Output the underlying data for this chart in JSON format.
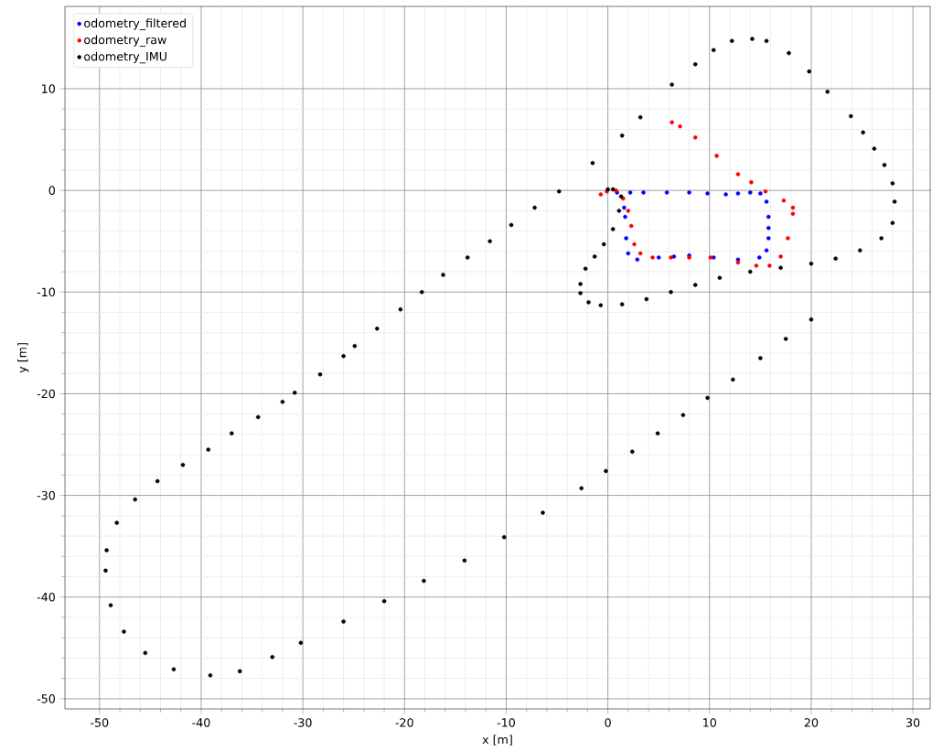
{
  "chart_data": {
    "type": "scatter",
    "xlabel": "x [m]",
    "ylabel": "y [m]",
    "xlim": [
      -53.4,
      31.7
    ],
    "ylim": [
      -51.0,
      18.1
    ],
    "xticks": [
      -50,
      -40,
      -30,
      -20,
      -10,
      0,
      10,
      20,
      30
    ],
    "yticks": [
      -50,
      -40,
      -30,
      -20,
      -10,
      0,
      10
    ],
    "grid": true,
    "legend": "top left",
    "series": [
      {
        "name": "odometry_filtered",
        "color": "#0000ff",
        "x": [
          2.2,
          3.5,
          5.8,
          8.0,
          9.8,
          11.6,
          12.8,
          14.0,
          15.0,
          15.6,
          15.8,
          15.8,
          15.8,
          15.6,
          14.9,
          12.8,
          10.4,
          8.0,
          6.5,
          5.0,
          2.9,
          2.0,
          1.8,
          1.7,
          1.6,
          0.9
        ],
        "values": [
          -0.2,
          -0.2,
          -0.2,
          -0.2,
          -0.3,
          -0.4,
          -0.3,
          -0.2,
          -0.3,
          -1.1,
          -2.6,
          -3.7,
          -4.7,
          -5.9,
          -6.6,
          -6.8,
          -6.6,
          -6.4,
          -6.5,
          -6.6,
          -6.8,
          -6.2,
          -4.7,
          -2.6,
          -1.7,
          -0.2
        ]
      },
      {
        "name": "odometry_raw",
        "color": "#ff0000",
        "x": [
          -0.7,
          -0.1,
          0.8,
          1.5,
          2.0,
          2.3,
          2.6,
          3.2,
          4.4,
          6.2,
          8.0,
          10.1,
          12.8,
          14.6,
          15.9,
          17.0,
          17.7,
          18.2,
          18.2,
          17.3,
          15.5,
          14.1,
          12.8,
          10.7,
          8.6,
          7.1,
          6.3
        ],
        "values": [
          -0.4,
          -0.1,
          0.0,
          -0.8,
          -2.0,
          -3.5,
          -5.3,
          -6.2,
          -6.6,
          -6.6,
          -6.6,
          -6.6,
          -7.1,
          -7.4,
          -7.4,
          -6.5,
          -4.7,
          -2.3,
          -1.7,
          -1.0,
          -0.1,
          0.8,
          1.6,
          3.4,
          5.2,
          6.3,
          6.7
        ]
      },
      {
        "name": "odometry_IMU",
        "color": "#000000",
        "x": [
          0.0,
          0.5,
          1.3,
          1.1,
          0.5,
          -0.4,
          -1.3,
          -2.2,
          -2.7,
          -2.7,
          -1.9,
          -0.7,
          1.4,
          3.8,
          6.2,
          8.6,
          11.0,
          14.0,
          17.0,
          20.0,
          22.4,
          24.8,
          26.9,
          28.0,
          28.2,
          28.0,
          27.2,
          26.2,
          25.1,
          23.9,
          21.6,
          19.8,
          17.8,
          15.6,
          14.2,
          12.2,
          10.4,
          8.6,
          6.3,
          3.2,
          1.4,
          -1.5,
          -4.8,
          -7.2,
          -9.5,
          -11.6,
          -13.8,
          -16.2,
          -18.3,
          -20.4,
          -22.7,
          -24.9,
          -26.0,
          -28.3,
          -30.8,
          -32.0,
          -34.4,
          -37.0,
          -39.3,
          -41.8,
          -44.3,
          -46.5,
          -48.3,
          -49.3,
          -49.4,
          -48.9,
          -47.6,
          -45.5,
          -42.7,
          -39.1,
          -36.2,
          -33.0,
          -30.2,
          -26.0,
          -22.0,
          -18.1,
          -14.1,
          -10.2,
          -6.4,
          -2.6,
          -0.2,
          2.4,
          4.9,
          7.4,
          9.8,
          12.3,
          15.0,
          17.5,
          20.0
        ],
        "values": [
          0.1,
          0.1,
          -0.6,
          -2.0,
          -3.8,
          -5.3,
          -6.5,
          -7.7,
          -9.2,
          -10.1,
          -11.0,
          -11.3,
          -11.2,
          -10.7,
          -10.0,
          -9.3,
          -8.6,
          -8.0,
          -7.6,
          -7.2,
          -6.7,
          -5.9,
          -4.7,
          -3.2,
          -1.1,
          0.7,
          2.5,
          4.1,
          5.7,
          7.3,
          9.7,
          11.7,
          13.5,
          14.7,
          14.9,
          14.7,
          13.8,
          12.4,
          10.4,
          7.2,
          5.4,
          2.7,
          -0.1,
          -1.7,
          -3.4,
          -5.0,
          -6.6,
          -8.3,
          -10.0,
          -11.7,
          -13.6,
          -15.3,
          -16.3,
          -18.1,
          -19.9,
          -20.8,
          -22.3,
          -23.9,
          -25.5,
          -27.0,
          -28.6,
          -30.4,
          -32.7,
          -35.4,
          -37.4,
          -40.8,
          -43.4,
          -45.5,
          -47.1,
          -47.7,
          -47.3,
          -45.9,
          -44.5,
          -42.4,
          -40.4,
          -38.4,
          -36.4,
          -34.1,
          -31.7,
          -29.3,
          -27.6,
          -25.7,
          -23.9,
          -22.1,
          -20.4,
          -18.6,
          -16.5,
          -14.6,
          -12.7
        ]
      }
    ]
  }
}
